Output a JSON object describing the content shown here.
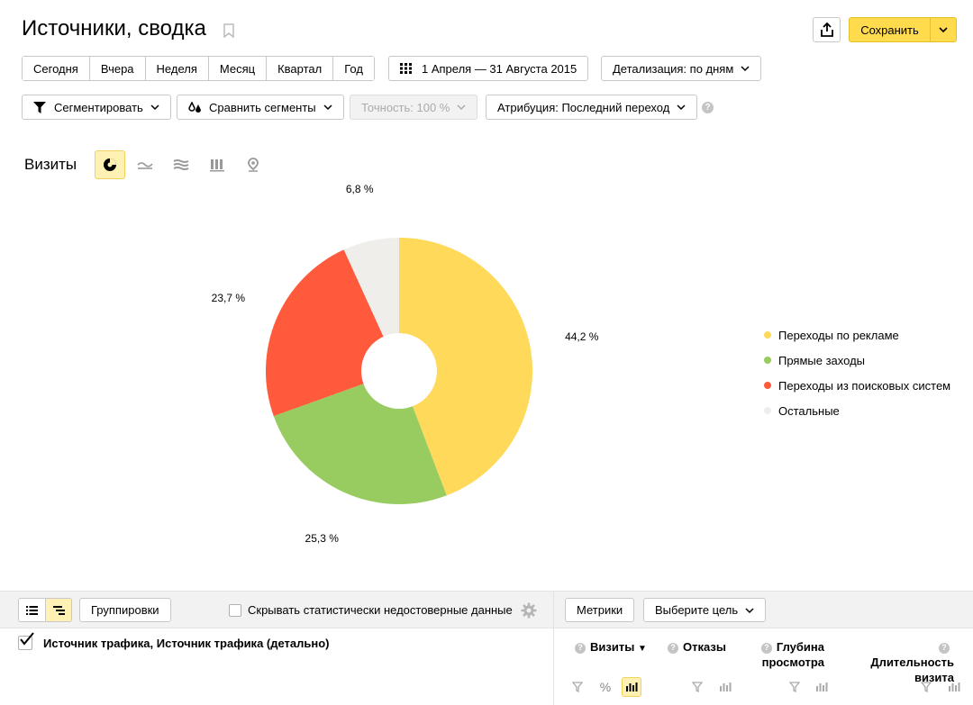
{
  "header": {
    "title": "Источники, сводка",
    "save_label": "Сохранить"
  },
  "periods": [
    "Сегодня",
    "Вчера",
    "Неделя",
    "Месяц",
    "Квартал",
    "Год"
  ],
  "date_range": "1 Апреля — 31 Августа 2015",
  "detail": "Детализация: по дням",
  "toolbar2": {
    "segment": "Сегментировать",
    "compare": "Сравнить сегменты",
    "accuracy": "Точность: 100 %",
    "attribution": "Атрибуция: Последний переход"
  },
  "chart_header": {
    "label": "Визиты"
  },
  "chart_data": {
    "type": "pie",
    "slices": [
      {
        "name": "Переходы по рекламе",
        "value": 44.2,
        "label": "44,2 %",
        "color": "#ffd95a"
      },
      {
        "name": "Прямые заходы",
        "value": 25.3,
        "label": "25,3 %",
        "color": "#98cc60"
      },
      {
        "name": "Переходы из поисковых систем",
        "value": 23.7,
        "label": "23,7 %",
        "color": "#ff5a3c"
      },
      {
        "name": "Остальные",
        "value": 6.8,
        "label": "6,8 %",
        "color": "#f0eeeb"
      }
    ],
    "donut": true,
    "legend_position": "right"
  },
  "bottom": {
    "groupings": "Группировки",
    "hide_stat": "Скрывать статистически недостоверные данные",
    "metrics": "Метрики",
    "goal": "Выберите цель",
    "dimension": "Источник трафика, Источник трафика (детально)",
    "columns": {
      "visits": "Визиты",
      "bounces": "Отказы",
      "depth_1": "Глубина",
      "depth_2": "просмотра",
      "duration_1": "Длительность",
      "duration_2": "визита"
    },
    "percent_sign": "%"
  },
  "colors": {
    "accent": "#ffdb4d",
    "active_bg": "#fff0b3"
  }
}
